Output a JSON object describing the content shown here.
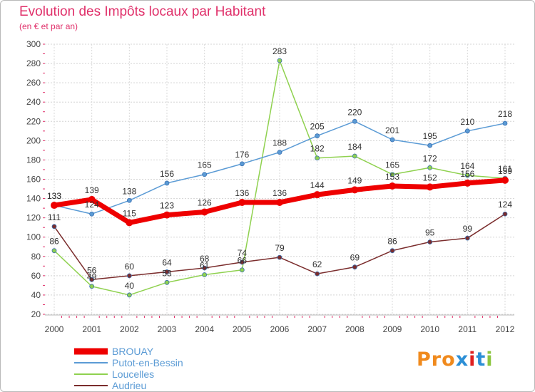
{
  "chart_data": {
    "type": "line",
    "title": "Evolution des Impôts locaux par Habitant",
    "subtitle": "(en € et par an)",
    "xlabel": "",
    "ylabel": "",
    "x": [
      "2000",
      "2001",
      "2002",
      "2003",
      "2004",
      "2005",
      "2006",
      "2007",
      "2008",
      "2009",
      "2010",
      "2011",
      "2012"
    ],
    "ylim": [
      20,
      300
    ],
    "yticks": [
      20,
      40,
      60,
      80,
      100,
      120,
      140,
      160,
      180,
      200,
      220,
      240,
      260,
      280,
      300
    ],
    "grid": true,
    "legend_position": "bottom-left",
    "series": [
      {
        "name": "BROUAY",
        "color": "#ee0000",
        "values": [
          133,
          139,
          115,
          123,
          126,
          136,
          136,
          144,
          149,
          153,
          152,
          156,
          159
        ],
        "labels": [
          "133",
          "139",
          "115",
          "123",
          "126",
          "136",
          "136",
          "144",
          "149",
          "153",
          "152",
          "156",
          "159"
        ]
      },
      {
        "name": "Putot-en-Bessin",
        "color": "#5b9bd5",
        "values": [
          133,
          124,
          138,
          156,
          165,
          176,
          188,
          205,
          220,
          201,
          195,
          210,
          218
        ],
        "labels": [
          "133",
          "124",
          "138",
          "156",
          "165",
          "176",
          "188",
          "205",
          "220",
          "201",
          "195",
          "210",
          "218"
        ]
      },
      {
        "name": "Loucelles",
        "color": "#8fd14f",
        "values": [
          86,
          49,
          40,
          53,
          61,
          66,
          283,
          182,
          184,
          165,
          172,
          164,
          161
        ],
        "labels": [
          "86",
          "49",
          "40",
          "53",
          "61",
          "66",
          "283",
          "182",
          "184",
          "165",
          "172",
          "164",
          "161"
        ]
      },
      {
        "name": "Audrieu",
        "color": "#7b2d2d",
        "values": [
          111,
          56,
          60,
          64,
          68,
          74,
          79,
          62,
          69,
          86,
          95,
          99,
          124
        ],
        "labels": [
          "111",
          "56",
          "60",
          "64",
          "68",
          "74",
          "79",
          "62",
          "69",
          "86",
          "95",
          "99",
          "124"
        ]
      }
    ]
  },
  "logo": {
    "text": "Proxiti",
    "colors": [
      "#f08a1d",
      "#f08a1d",
      "#f08a1d",
      "#2c8fd6",
      "#e02020",
      "#2c8fd6",
      "#8cc63f"
    ]
  }
}
